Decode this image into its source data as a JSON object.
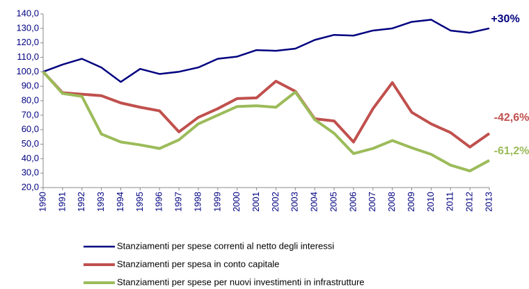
{
  "chart_data": {
    "type": "line",
    "categories": [
      "1990",
      "1991",
      "1992",
      "1993",
      "1994",
      "1995",
      "1996",
      "1997",
      "1998",
      "1999",
      "2000",
      "2001",
      "2002",
      "2003",
      "2004",
      "2005",
      "2006",
      "2007",
      "2008",
      "2009",
      "2010",
      "2011",
      "2012",
      "2013"
    ],
    "series": [
      {
        "name": "Stanziamenti per spese correnti al netto degli interessi",
        "color": "#000080",
        "values": [
          100,
          105,
          109,
          103,
          93,
          102,
          98.5,
          100,
          103,
          109,
          110.5,
          115,
          114.5,
          116,
          122,
          125.5,
          125,
          128.5,
          130,
          134.5,
          136,
          128.5,
          127,
          130
        ]
      },
      {
        "name": "Stanziamenti per spesa in conto capitale",
        "color": "#c0504d",
        "values": [
          100,
          85.5,
          84.5,
          83.5,
          78.5,
          75.5,
          73,
          58.5,
          68.5,
          74.5,
          81.5,
          82,
          93.5,
          86.5,
          67.5,
          66,
          51.5,
          74.5,
          92.5,
          72,
          64,
          58,
          48,
          57.4
        ]
      },
      {
        "name": "Stanziamenti per spese per nuovi investimenti in infrastrutture",
        "color": "#9bbb59",
        "values": [
          100,
          85,
          83,
          57,
          51.5,
          49.5,
          47,
          53,
          64,
          70,
          76,
          76.5,
          75.5,
          86,
          67,
          57.5,
          43.5,
          47,
          52.5,
          47.5,
          43,
          35.5,
          31.5,
          38.8
        ]
      }
    ],
    "annotations": [
      {
        "text": "+30%",
        "color": "#000080"
      },
      {
        "text": "-42,6%",
        "color": "#c0504d"
      },
      {
        "text": "-61,2%",
        "color": "#9bbb59"
      }
    ],
    "ylim": [
      20,
      140
    ],
    "yticks": [
      {
        "value": 20,
        "label": "20,0"
      },
      {
        "value": 30,
        "label": "30,0"
      },
      {
        "value": 40,
        "label": "40,0"
      },
      {
        "value": 50,
        "label": "50,0"
      },
      {
        "value": 60,
        "label": "60,0"
      },
      {
        "value": 70,
        "label": "70,0"
      },
      {
        "value": 80,
        "label": "80,0"
      },
      {
        "value": 90,
        "label": "90,0"
      },
      {
        "value": 100,
        "label": "100,0"
      },
      {
        "value": 110,
        "label": "110,0"
      },
      {
        "value": 120,
        "label": "120,0"
      },
      {
        "value": 130,
        "label": "130,0"
      },
      {
        "value": 140,
        "label": "140,0"
      }
    ],
    "grid": false,
    "legend": "bottom"
  }
}
